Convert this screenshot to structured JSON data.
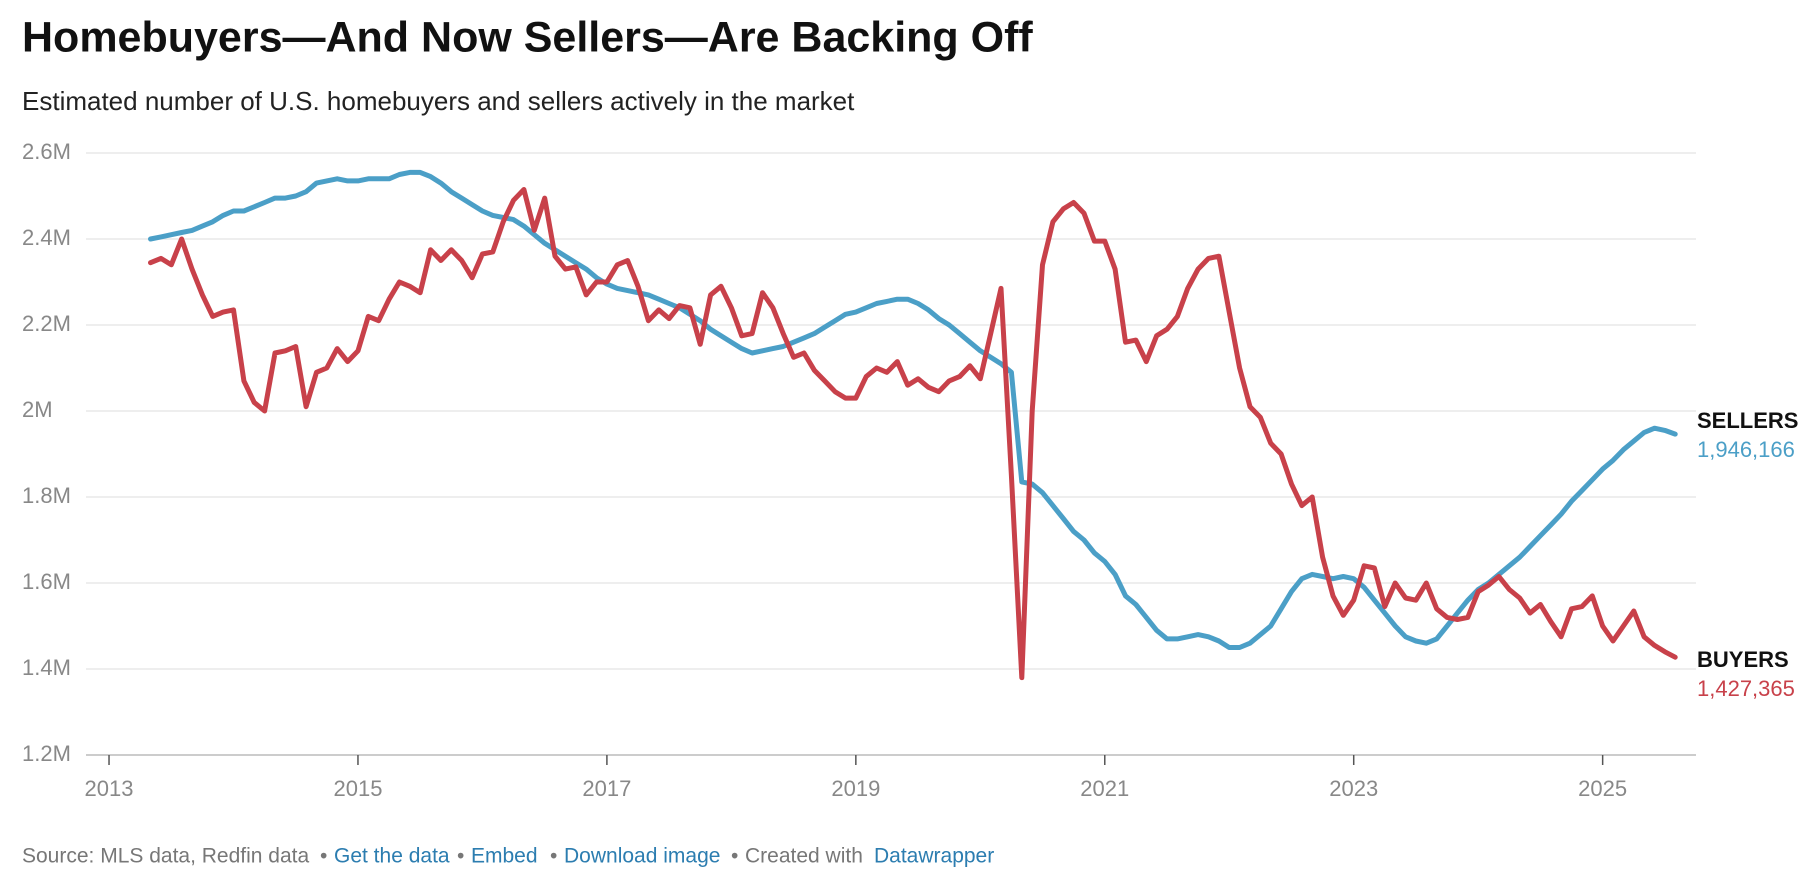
{
  "chart_data": {
    "type": "line",
    "title": "Homebuyers—And Now Sellers—Are Backing Off",
    "subtitle": "Estimated number of U.S. homebuyers and sellers actively in the market",
    "x_start": 2013.3333,
    "x_step": 0.083333,
    "xlim": [
      2012.815,
      2025.75
    ],
    "xticks": [
      2013,
      2015,
      2017,
      2019,
      2021,
      2023,
      2025
    ],
    "ylim": [
      1200000,
      2600000
    ],
    "yticks": [
      {
        "value": 1200000,
        "label": "1.2M"
      },
      {
        "value": 1400000,
        "label": "1.4M"
      },
      {
        "value": 1600000,
        "label": "1.6M"
      },
      {
        "value": 1800000,
        "label": "1.8M"
      },
      {
        "value": 2000000,
        "label": "2M"
      },
      {
        "value": 2200000,
        "label": "2.2M"
      },
      {
        "value": 2400000,
        "label": "2.4M"
      },
      {
        "value": 2600000,
        "label": "2.6M"
      }
    ],
    "grid": true,
    "series": [
      {
        "name": "SELLERS",
        "color": "#4b9fc7",
        "last_value_label": "1,946,166",
        "values": [
          2400000,
          2405000,
          2410000,
          2415000,
          2420000,
          2430000,
          2440000,
          2455000,
          2465000,
          2465000,
          2475000,
          2485000,
          2495000,
          2495000,
          2500000,
          2510000,
          2530000,
          2535000,
          2540000,
          2535000,
          2535000,
          2540000,
          2540000,
          2540000,
          2550000,
          2555000,
          2555000,
          2545000,
          2530000,
          2510000,
          2495000,
          2480000,
          2465000,
          2455000,
          2450000,
          2445000,
          2430000,
          2410000,
          2390000,
          2375000,
          2360000,
          2345000,
          2330000,
          2310000,
          2295000,
          2285000,
          2280000,
          2275000,
          2270000,
          2260000,
          2250000,
          2240000,
          2225000,
          2210000,
          2190000,
          2175000,
          2160000,
          2145000,
          2135000,
          2140000,
          2145000,
          2150000,
          2160000,
          2170000,
          2180000,
          2195000,
          2210000,
          2225000,
          2230000,
          2240000,
          2250000,
          2255000,
          2260000,
          2260000,
          2250000,
          2235000,
          2215000,
          2200000,
          2180000,
          2160000,
          2140000,
          2125000,
          2110000,
          2090000,
          1835000,
          1830000,
          1810000,
          1780000,
          1750000,
          1720000,
          1700000,
          1670000,
          1650000,
          1620000,
          1570000,
          1550000,
          1520000,
          1490000,
          1470000,
          1470000,
          1475000,
          1480000,
          1475000,
          1465000,
          1450000,
          1450000,
          1460000,
          1480000,
          1500000,
          1540000,
          1580000,
          1610000,
          1620000,
          1615000,
          1610000,
          1615000,
          1610000,
          1590000,
          1560000,
          1530000,
          1500000,
          1475000,
          1465000,
          1460000,
          1470000,
          1500000,
          1530000,
          1560000,
          1585000,
          1600000,
          1620000,
          1640000,
          1660000,
          1685000,
          1710000,
          1735000,
          1760000,
          1790000,
          1815000,
          1840000,
          1865000,
          1885000,
          1910000,
          1930000,
          1950000,
          1960000,
          1955000,
          1946166
        ]
      },
      {
        "name": "BUYERS",
        "color": "#c8414a",
        "last_value_label": "1,427,365",
        "values": [
          2345000,
          2355000,
          2340000,
          2400000,
          2330000,
          2270000,
          2220000,
          2230000,
          2235000,
          2070000,
          2020000,
          2000000,
          2135000,
          2140000,
          2150000,
          2010000,
          2090000,
          2100000,
          2145000,
          2115000,
          2140000,
          2220000,
          2210000,
          2260000,
          2300000,
          2290000,
          2275000,
          2375000,
          2350000,
          2375000,
          2350000,
          2310000,
          2365000,
          2370000,
          2440000,
          2490000,
          2515000,
          2420000,
          2495000,
          2360000,
          2330000,
          2335000,
          2270000,
          2300000,
          2300000,
          2340000,
          2350000,
          2290000,
          2210000,
          2235000,
          2215000,
          2245000,
          2240000,
          2155000,
          2270000,
          2290000,
          2240000,
          2175000,
          2180000,
          2275000,
          2240000,
          2180000,
          2125000,
          2135000,
          2095000,
          2070000,
          2045000,
          2030000,
          2030000,
          2080000,
          2100000,
          2090000,
          2115000,
          2060000,
          2075000,
          2055000,
          2045000,
          2070000,
          2080000,
          2105000,
          2075000,
          2180000,
          2285000,
          1850000,
          1380000,
          2000000,
          2340000,
          2440000,
          2470000,
          2485000,
          2460000,
          2395000,
          2395000,
          2330000,
          2160000,
          2165000,
          2115000,
          2175000,
          2190000,
          2220000,
          2285000,
          2330000,
          2355000,
          2360000,
          2230000,
          2100000,
          2010000,
          1985000,
          1925000,
          1900000,
          1830000,
          1780000,
          1800000,
          1660000,
          1570000,
          1525000,
          1560000,
          1640000,
          1635000,
          1545000,
          1600000,
          1565000,
          1560000,
          1600000,
          1540000,
          1520000,
          1515000,
          1520000,
          1580000,
          1595000,
          1615000,
          1585000,
          1565000,
          1530000,
          1550000,
          1510000,
          1475000,
          1540000,
          1545000,
          1570000,
          1500000,
          1465000,
          1500000,
          1535000,
          1475000,
          1455000,
          1440000,
          1427365
        ]
      }
    ],
    "footer": {
      "source": "Source: MLS data, Redfin data",
      "get_data": "Get the data",
      "embed": "Embed",
      "download": "Download image",
      "created": "Created with",
      "tool": "Datawrapper"
    }
  }
}
